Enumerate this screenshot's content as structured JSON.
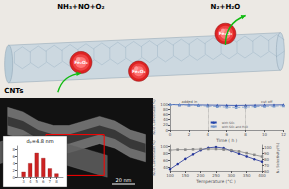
{
  "chart_data": [
    {
      "type": "diagram",
      "color": "#ece9e4",
      "annotations": [
        "NH₃+NO+O₂",
        "N₂+H₂O",
        "CNTs",
        "Fe₂O₃",
        "Fe₂O₃",
        "Fe₂O₃"
      ]
    },
    {
      "type": "image",
      "annotations": [
        "20 nm"
      ]
    },
    {
      "type": "bar",
      "x": [
        3,
        4,
        5,
        6,
        7,
        8
      ],
      "values": [
        1.5,
        4,
        7,
        5.5,
        2.5,
        1
      ],
      "color": "#cc2222",
      "xlim": [
        2,
        9
      ],
      "xticks": [
        3,
        4,
        5,
        6,
        7,
        8
      ],
      "ylim": [
        0,
        9
      ],
      "yticks": [
        0,
        2,
        4,
        6,
        8
      ],
      "grid": false,
      "annotations": [
        "dₚ=4.8 nm"
      ]
    },
    {
      "type": "line",
      "xlabel": "Time ( h )",
      "ylabel": "NOx Conversion(%)",
      "x": [
        0,
        1,
        2,
        3,
        4,
        5,
        6,
        7,
        8,
        9,
        10,
        11,
        12
      ],
      "series": [
        {
          "name": "with SO₂",
          "color": "#2244aa",
          "marker": "triangle",
          "line_style": "solid",
          "values": [
            98,
            97.5,
            97,
            96.5,
            96,
            95.5,
            95,
            94.5,
            95,
            95.5,
            96,
            96.5,
            97
          ]
        },
        {
          "name": "with SO₂ and H₂O",
          "color": "#7799cc",
          "marker": "triangle",
          "line_style": "dashed",
          "values": [
            98,
            97,
            96,
            94,
            92,
            90,
            88,
            87,
            88,
            90,
            91,
            92,
            93
          ]
        }
      ],
      "xlim": [
        0,
        12
      ],
      "xticks": [
        0,
        2,
        4,
        6,
        8,
        10,
        12
      ],
      "ylim": [
        0,
        100
      ],
      "yticks": [
        0,
        20,
        40,
        60,
        80,
        100
      ],
      "grid": false,
      "legend": "bottom",
      "vlines": [
        4,
        8
      ],
      "annotations": [
        {
          "text": "added in",
          "x": 2
        },
        {
          "text": "cut off",
          "x": 10
        }
      ]
    },
    {
      "type": "line",
      "xlabel": "Temperature (°C )",
      "ylabel": "NOx Conversion(%)",
      "y2label": "N₂ Selectivity(%)",
      "x": [
        100,
        125,
        150,
        175,
        200,
        225,
        250,
        275,
        300,
        325,
        350,
        375,
        400
      ],
      "series": [
        {
          "color": "#223399",
          "marker": "circle",
          "line_style": "solid",
          "values": [
            35,
            50,
            65,
            78,
            90,
            97,
            99,
            96,
            88,
            80,
            72,
            64,
            57
          ]
        },
        {
          "color": "#888888",
          "marker": "square",
          "line_style": "solid",
          "axis": "y2",
          "values": [
            96,
            97,
            97,
            97.5,
            98,
            98,
            98,
            97,
            96,
            94,
            91,
            88,
            85
          ]
        }
      ],
      "xlim": [
        100,
        400
      ],
      "xticks": [
        100,
        150,
        200,
        250,
        300,
        350,
        400
      ],
      "ylim": [
        30,
        105
      ],
      "yticks": [
        40,
        60,
        80,
        100
      ],
      "y2lim": [
        60,
        105
      ],
      "y2ticks": [
        60,
        70,
        80,
        90,
        100
      ],
      "grid": false
    }
  ]
}
